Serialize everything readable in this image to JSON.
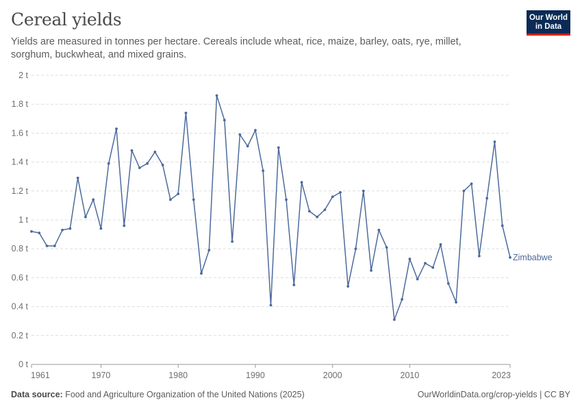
{
  "header": {
    "title": "Cereal yields",
    "subtitle": "Yields are measured in tonnes per hectare. Cereals include wheat, rice, maize, barley, oats, rye, millet, sorghum, buckwheat, and mixed grains.",
    "logo_line1": "Our World",
    "logo_line2": "in Data"
  },
  "footer": {
    "source_label": "Data source:",
    "source_text": "Food and Agriculture Organization of the United Nations (2025)",
    "url_text": "OurWorldinData.org/crop-yields | CC BY"
  },
  "colors": {
    "line": "#4c6a9c",
    "grid": "#dddddd",
    "axis": "#999999",
    "logo_bg": "#0b2a55",
    "logo_accent": "#ce261e"
  },
  "chart_data": {
    "type": "line",
    "title": "Cereal yields",
    "xlabel": "",
    "ylabel": "",
    "xlim": [
      1961,
      2023
    ],
    "ylim": [
      0,
      2
    ],
    "grid": "horizontal dashed",
    "x_tick_labels": [
      "1961",
      "1970",
      "1980",
      "1990",
      "2000",
      "2010",
      "2023"
    ],
    "x_tick_values": [
      1961,
      1970,
      1980,
      1990,
      2000,
      2010,
      2023
    ],
    "y_tick_labels": [
      "0 t",
      "0.2 t",
      "0.4 t",
      "0.6 t",
      "0.8 t",
      "1 t",
      "1.2 t",
      "1.4 t",
      "1.6 t",
      "1.8 t",
      "2 t"
    ],
    "y_tick_values": [
      0,
      0.2,
      0.4,
      0.6,
      0.8,
      1.0,
      1.2,
      1.4,
      1.6,
      1.8,
      2.0
    ],
    "series": [
      {
        "name": "Zimbabwe",
        "x": [
          1961,
          1962,
          1963,
          1964,
          1965,
          1966,
          1967,
          1968,
          1969,
          1970,
          1971,
          1972,
          1973,
          1974,
          1975,
          1976,
          1977,
          1978,
          1979,
          1980,
          1981,
          1982,
          1983,
          1984,
          1985,
          1986,
          1987,
          1988,
          1989,
          1990,
          1991,
          1992,
          1993,
          1994,
          1995,
          1996,
          1997,
          1998,
          1999,
          2000,
          2001,
          2002,
          2003,
          2004,
          2005,
          2006,
          2007,
          2008,
          2009,
          2010,
          2011,
          2012,
          2013,
          2014,
          2015,
          2016,
          2017,
          2018,
          2019,
          2020,
          2021,
          2022,
          2023
        ],
        "values": [
          0.92,
          0.91,
          0.82,
          0.82,
          0.93,
          0.94,
          1.29,
          1.02,
          1.14,
          0.94,
          1.39,
          1.63,
          0.96,
          1.48,
          1.36,
          1.39,
          1.47,
          1.38,
          1.14,
          1.18,
          1.74,
          1.14,
          0.63,
          0.79,
          1.86,
          1.69,
          0.85,
          1.59,
          1.51,
          1.62,
          1.34,
          0.41,
          1.5,
          1.14,
          0.55,
          1.26,
          1.06,
          1.02,
          1.07,
          1.16,
          1.19,
          0.54,
          0.8,
          1.2,
          0.65,
          0.93,
          0.81,
          0.31,
          0.45,
          0.73,
          0.59,
          0.7,
          0.67,
          0.83,
          0.56,
          0.43,
          1.2,
          1.25,
          0.75,
          1.15,
          1.54,
          0.96,
          0.74
        ]
      }
    ]
  }
}
